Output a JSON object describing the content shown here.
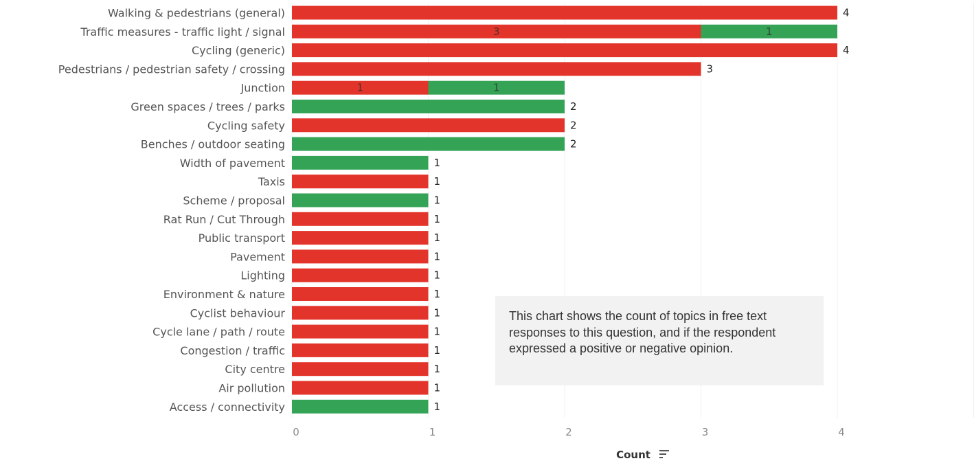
{
  "chart_data": {
    "type": "bar",
    "orientation": "horizontal",
    "stacked": true,
    "categories": [
      "Walking & pedestrians (general)",
      "Traffic measures - traffic light / signal",
      "Cycling (generic)",
      "Pedestrians / pedestrian safety / crossing",
      "Junction",
      "Green spaces / trees / parks",
      "Cycling safety",
      "Benches / outdoor seating",
      "Width of pavement",
      "Taxis",
      "Scheme / proposal",
      "Rat Run / Cut Through",
      "Public transport",
      "Pavement",
      "Lighting",
      "Environment & nature",
      "Cyclist behaviour",
      "Cycle lane / path / route",
      "Congestion / traffic",
      "City centre",
      "Air pollution",
      "Access / connectivity"
    ],
    "series": [
      {
        "color": "#e2342a",
        "values": [
          4,
          3,
          4,
          3,
          1,
          0,
          2,
          0,
          0,
          1,
          0,
          1,
          1,
          1,
          1,
          1,
          1,
          1,
          1,
          1,
          1,
          0
        ]
      },
      {
        "color": "#34a356",
        "values": [
          0,
          1,
          0,
          0,
          1,
          2,
          0,
          2,
          1,
          0,
          1,
          0,
          0,
          0,
          0,
          0,
          0,
          0,
          0,
          0,
          0,
          1
        ]
      }
    ],
    "xlim": [
      0,
      5
    ],
    "xticks": [
      "0",
      "1",
      "2",
      "3",
      "4",
      "5"
    ],
    "xlabel": "Count",
    "ylabel": "",
    "grid": true,
    "note": "This chart shows the count of topics in free text responses to this question, and if the respondent expressed a positive or negative opinion."
  }
}
